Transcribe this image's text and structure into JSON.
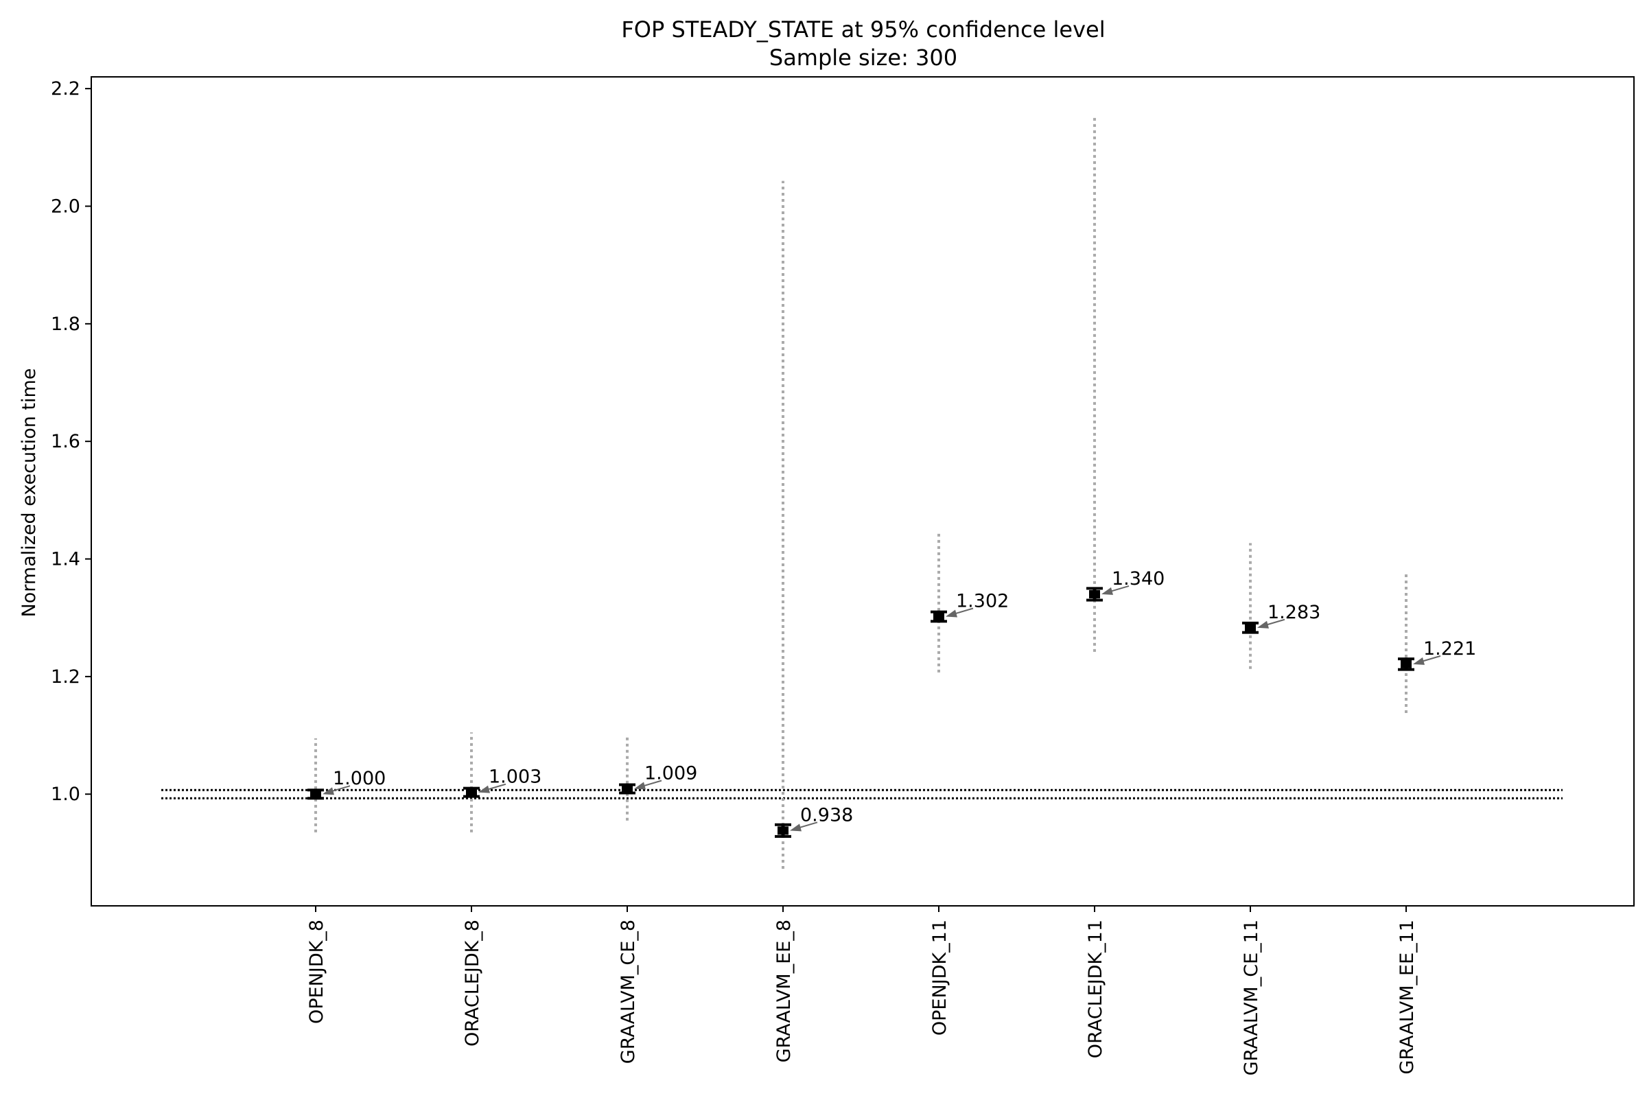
{
  "chart_data": {
    "type": "scatter",
    "title": "FOP STEADY_STATE at 95% confidence level",
    "subtitle": "Sample size: 300",
    "xlabel": "",
    "ylabel": "Normalized execution time",
    "ylim": [
      0.81,
      2.22
    ],
    "yticks": [
      "1.0",
      "1.2",
      "1.4",
      "1.6",
      "1.8",
      "2.0",
      "2.2"
    ],
    "categories": [
      "OPENJDK_8",
      "ORACLEJDK_8",
      "GRAALVM_CE_8",
      "GRAALVM_EE_8",
      "OPENJDK_11",
      "ORACLEJDK_11",
      "GRAALVM_CE_11",
      "GRAALVM_EE_11"
    ],
    "values": [
      1.0,
      1.003,
      1.009,
      0.938,
      1.302,
      1.34,
      1.283,
      1.221
    ],
    "value_labels": [
      "1.000",
      "1.003",
      "1.009",
      "0.938",
      "1.302",
      "1.340",
      "1.283",
      "1.221"
    ],
    "ci_low": [
      0.993,
      0.996,
      1.002,
      0.928,
      1.294,
      1.33,
      1.275,
      1.212
    ],
    "ci_high": [
      1.007,
      1.01,
      1.016,
      0.948,
      1.31,
      1.35,
      1.291,
      1.23
    ],
    "range_low": [
      0.935,
      0.935,
      0.955,
      0.873,
      1.207,
      1.242,
      1.213,
      1.138
    ],
    "range_high": [
      1.095,
      1.105,
      1.097,
      2.043,
      1.445,
      2.153,
      1.427,
      1.377
    ],
    "reference_band": [
      0.993,
      1.007
    ],
    "grid": false,
    "legend": "none",
    "colors": {
      "marker": "#000000",
      "range": "#aaaaaa",
      "arrow": "#666666",
      "reference": "#000000"
    }
  }
}
